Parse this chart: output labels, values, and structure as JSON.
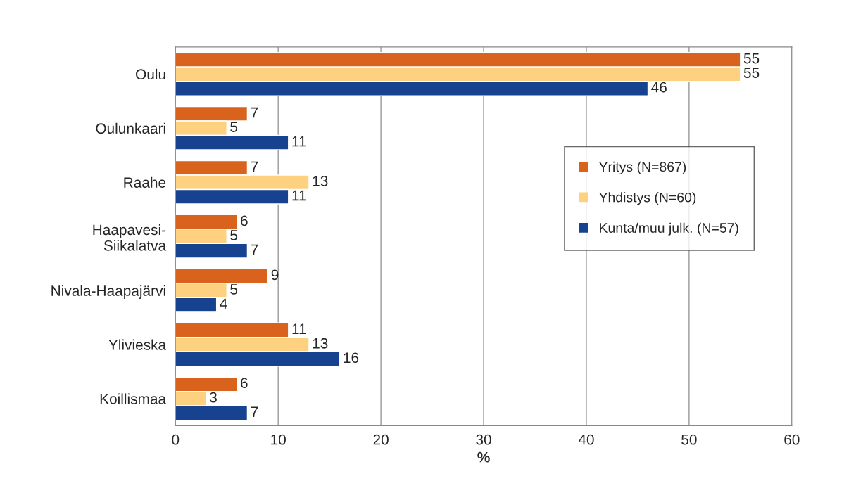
{
  "chart_data": {
    "type": "bar",
    "orientation": "horizontal",
    "xlabel": "%",
    "categories": [
      "Oulu",
      "Oulunkaari",
      "Raahe",
      "Haapavesi-\nSiikalatva",
      "Nivala-Haapajärvi",
      "Ylivieska",
      "Koillismaa"
    ],
    "series": [
      {
        "name": "Yritys (N=867)",
        "color": "#d9621c",
        "values": [
          55,
          7,
          7,
          6,
          9,
          11,
          6
        ]
      },
      {
        "name": "Yhdistys (N=60)",
        "color": "#fdd17f",
        "values": [
          55,
          5,
          13,
          5,
          5,
          13,
          3
        ]
      },
      {
        "name": "Kunta/muu julk. (N=57)",
        "color": "#17428f",
        "values": [
          46,
          11,
          11,
          7,
          4,
          16,
          7
        ]
      }
    ],
    "xlim": [
      0,
      60
    ],
    "xticks": [
      0,
      10,
      20,
      30,
      40,
      50,
      60
    ],
    "grid": "x",
    "legend": "right",
    "data_labels": true
  }
}
